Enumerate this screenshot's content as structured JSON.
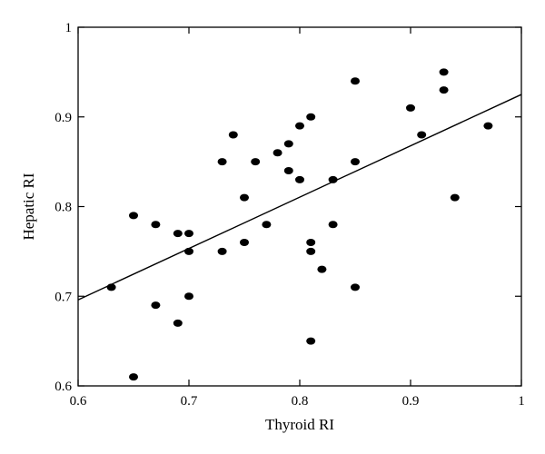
{
  "chart_data": {
    "type": "scatter",
    "title": "",
    "xlabel": "Thyroid RI",
    "ylabel": "Hepatic RI",
    "xlim": [
      0.6,
      1
    ],
    "ylim": [
      0.6,
      1
    ],
    "x_ticks": [
      0.6,
      0.7,
      0.8,
      0.9,
      1
    ],
    "y_ticks": [
      0.6,
      0.7,
      0.8,
      0.9,
      1
    ],
    "x_tick_labels": [
      "0.6",
      "0.7",
      "0.8",
      "0.9",
      "1"
    ],
    "y_tick_labels": [
      "0.6",
      "0.7",
      "0.8",
      "0.9",
      "1"
    ],
    "grid": false,
    "legend": "none",
    "point_color": "#000000",
    "series": [
      {
        "points": [
          [
            0.63,
            0.71
          ],
          [
            0.65,
            0.79
          ],
          [
            0.65,
            0.61
          ],
          [
            0.67,
            0.78
          ],
          [
            0.67,
            0.69
          ],
          [
            0.69,
            0.77
          ],
          [
            0.69,
            0.67
          ],
          [
            0.7,
            0.77
          ],
          [
            0.7,
            0.75
          ],
          [
            0.7,
            0.7
          ],
          [
            0.73,
            0.85
          ],
          [
            0.73,
            0.75
          ],
          [
            0.74,
            0.88
          ],
          [
            0.75,
            0.81
          ],
          [
            0.75,
            0.76
          ],
          [
            0.76,
            0.85
          ],
          [
            0.77,
            0.78
          ],
          [
            0.78,
            0.86
          ],
          [
            0.79,
            0.87
          ],
          [
            0.79,
            0.84
          ],
          [
            0.8,
            0.89
          ],
          [
            0.8,
            0.83
          ],
          [
            0.81,
            0.9
          ],
          [
            0.81,
            0.76
          ],
          [
            0.81,
            0.75
          ],
          [
            0.81,
            0.65
          ],
          [
            0.82,
            0.73
          ],
          [
            0.83,
            0.83
          ],
          [
            0.83,
            0.78
          ],
          [
            0.85,
            0.94
          ],
          [
            0.85,
            0.85
          ],
          [
            0.85,
            0.71
          ],
          [
            0.9,
            0.91
          ],
          [
            0.91,
            0.88
          ],
          [
            0.93,
            0.95
          ],
          [
            0.93,
            0.93
          ],
          [
            0.94,
            0.81
          ],
          [
            0.97,
            0.89
          ]
        ]
      }
    ],
    "trend_line": {
      "x": [
        0.6,
        1.0
      ],
      "y": [
        0.696,
        0.925
      ]
    }
  }
}
